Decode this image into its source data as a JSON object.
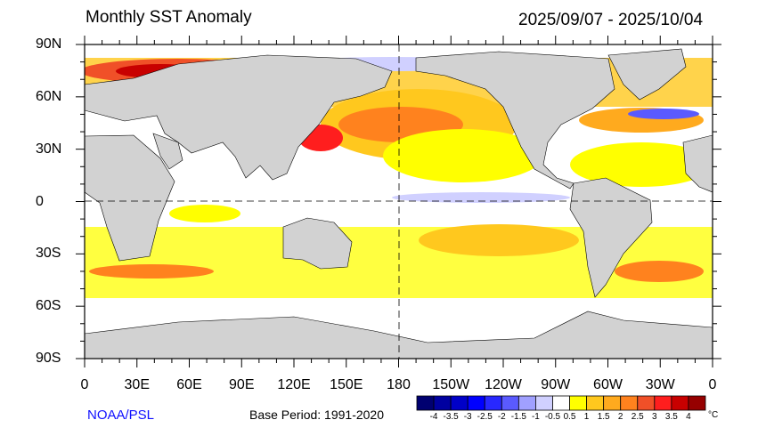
{
  "header": {
    "title": "Monthly SST Anomaly",
    "date_range": "2025/09/07 - 2025/10/04"
  },
  "axes": {
    "lat_labels": [
      "90N",
      "60N",
      "30N",
      "0",
      "30S",
      "60S",
      "90S"
    ],
    "lon_labels": [
      "0",
      "30E",
      "60E",
      "90E",
      "120E",
      "150E",
      "180",
      "150W",
      "120W",
      "90W",
      "60W",
      "30W",
      "0"
    ]
  },
  "colorbar": {
    "labels": [
      "-4",
      "-3.5",
      "-3",
      "-2.5",
      "-2",
      "-1.5",
      "-1",
      "-0.5",
      "0.5",
      "1",
      "1.5",
      "2",
      "2.5",
      "3",
      "3.5",
      "4"
    ],
    "unit": "°C",
    "colors": [
      "#000070",
      "#0000a0",
      "#0000c8",
      "#0000ff",
      "#2828ff",
      "#5a5aff",
      "#a0a0ff",
      "#d0d0ff",
      "#ffffff",
      "#ffff00",
      "#ffc81e",
      "#ffaa1e",
      "#ff821e",
      "#f05028",
      "#ff1e1e",
      "#c80000",
      "#960000"
    ]
  },
  "footer": {
    "credit": "NOAA/PSL",
    "base_period": "Base Period: 1991-2020"
  },
  "land_color": "#d2d2d2"
}
